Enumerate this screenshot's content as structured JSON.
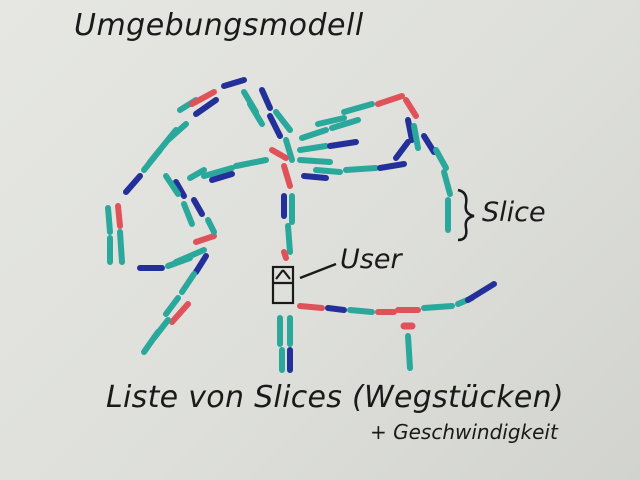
{
  "title": "Umgebungsmodell",
  "labels": {
    "slice": "Slice",
    "user": "User"
  },
  "caption": {
    "main": "Liste von Slices (Wegstücken)",
    "sub": "+ Geschwindigkeit"
  },
  "colors": {
    "teal": "#2aa89b",
    "navy": "#23309a",
    "red": "#e0525a",
    "ink": "#1a1a1a"
  }
}
